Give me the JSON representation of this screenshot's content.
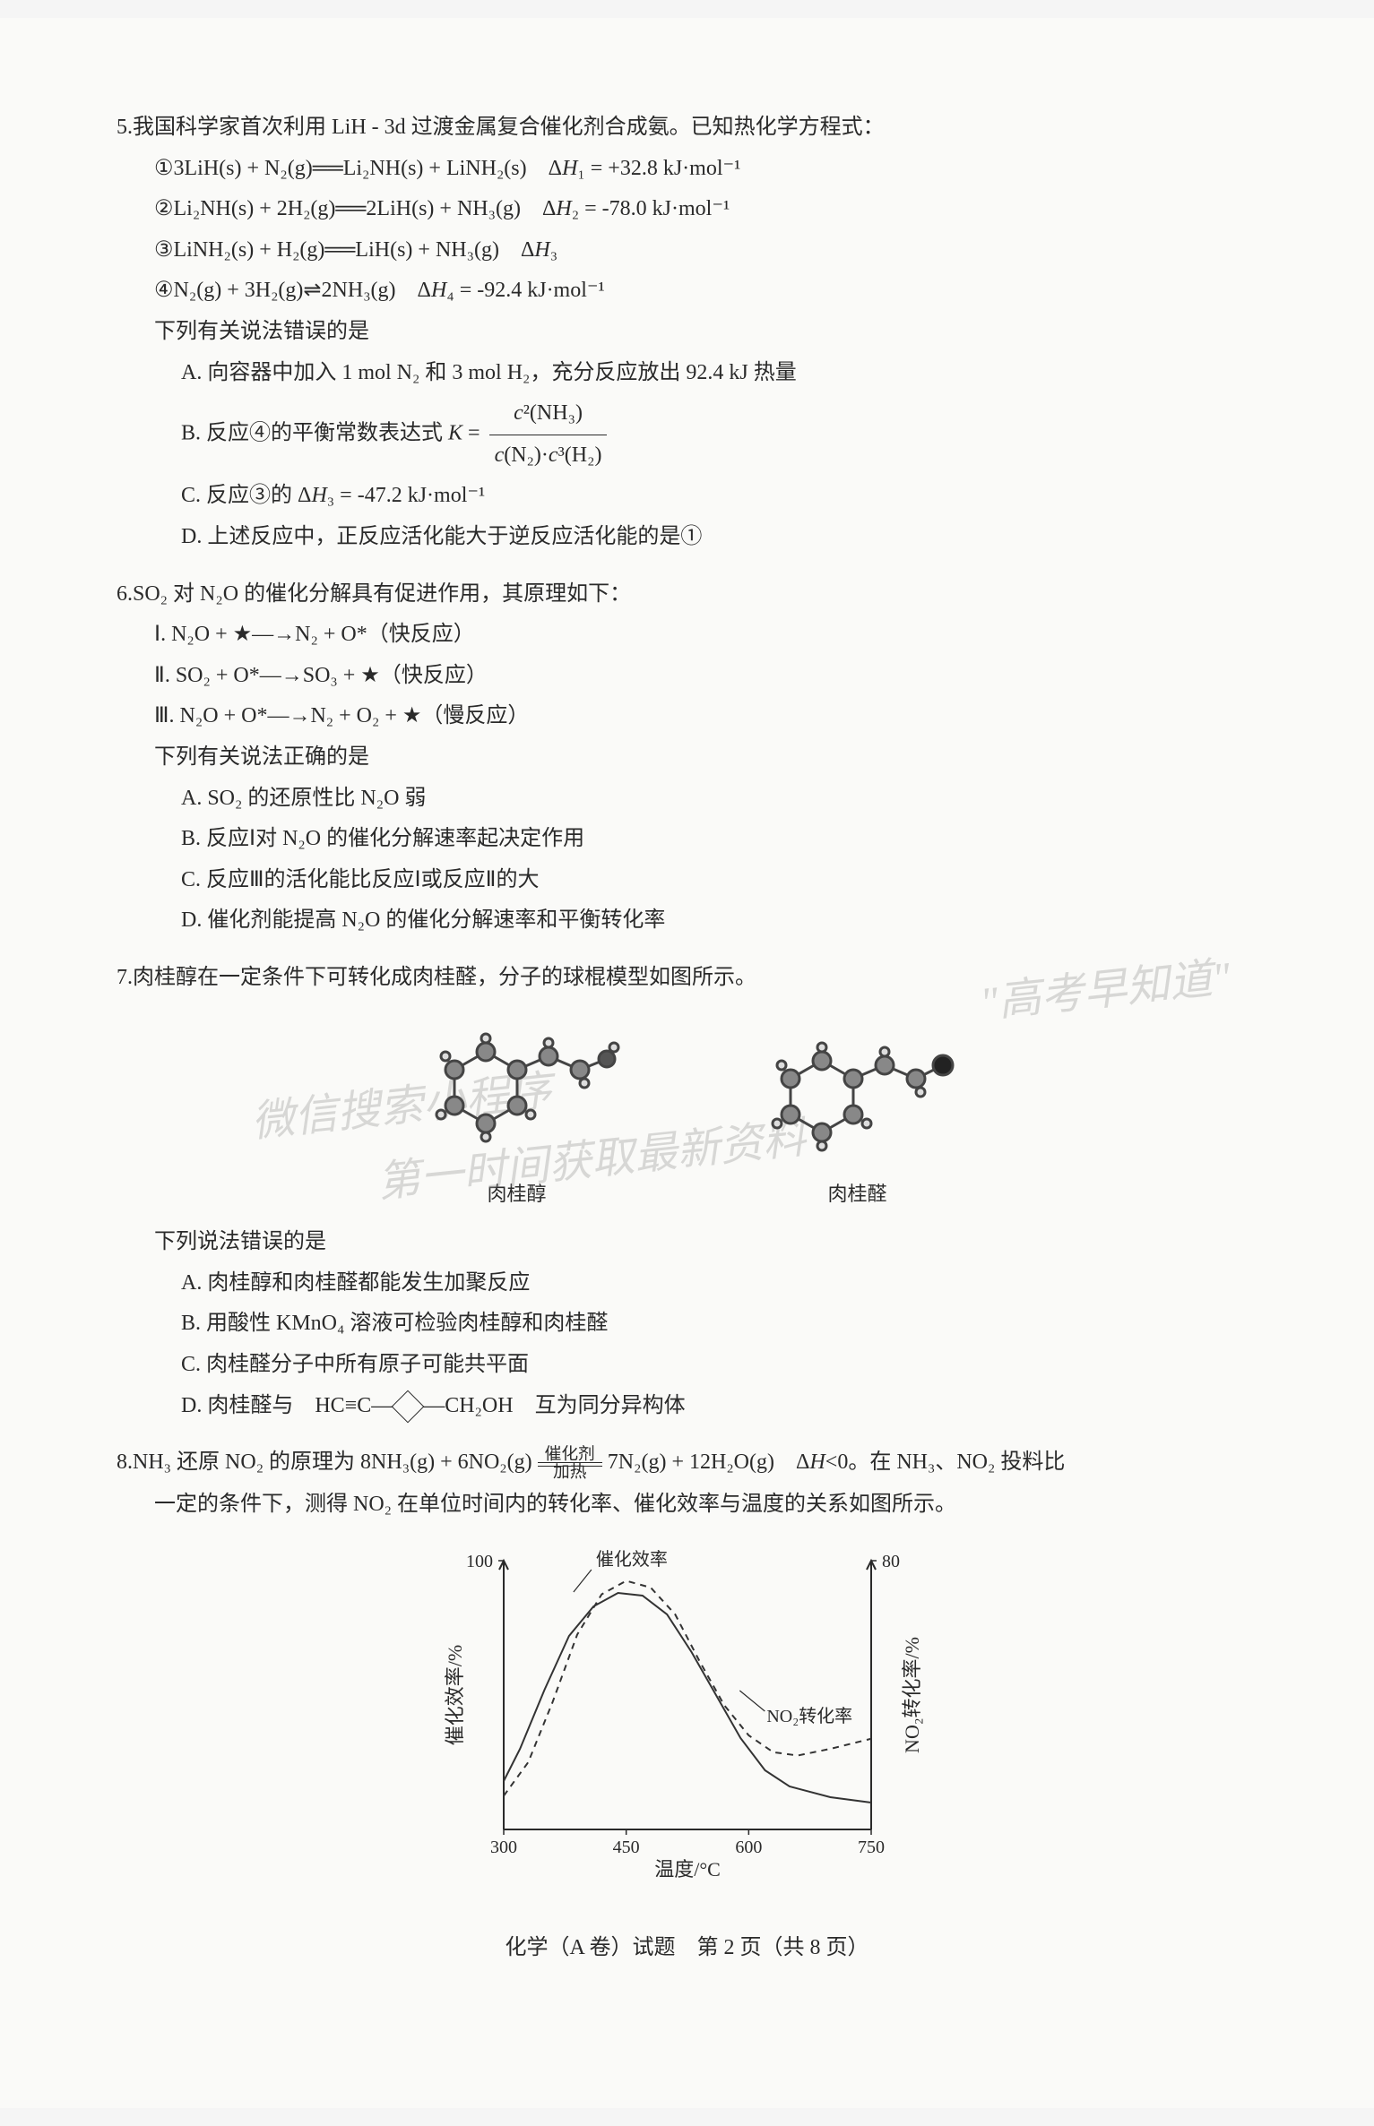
{
  "q5": {
    "num": "5.",
    "stem": "我国科学家首次利用 LiH - 3d 过渡金属复合催化剂合成氨。已知热化学方程式：",
    "eq1": "①3LiH(s) + N₂(g)══Li₂NH(s) + LiNH₂(s)　Δ<italic>H</italic>₁ = +32.8 kJ·mol⁻¹",
    "eq2": "②Li₂NH(s) + 2H₂(g)══2LiH(s) + NH₃(g)　Δ<italic>H</italic>₂ = -78.0 kJ·mol⁻¹",
    "eq3": "③LiNH₂(s) + H₂(g)══LiH(s) + NH₃(g)　Δ<italic>H</italic>₃",
    "eq4": "④N₂(g) + 3H₂(g)⇌2NH₃(g)　Δ<italic>H</italic>₄ = -92.4 kJ·mol⁻¹",
    "prompt": "下列有关说法错误的是",
    "optA": "A. 向容器中加入 1 mol N₂ 和 3 mol H₂，充分反应放出 92.4 kJ 热量",
    "optB_prefix": "B. 反应④的平衡常数表达式 <italic>K</italic> = ",
    "optB_num": "<italic>c</italic>²(NH₃)",
    "optB_den": "<italic>c</italic>(N₂)·<italic>c</italic>³(H₂)",
    "optC": "C. 反应③的 Δ<italic>H</italic>₃ = -47.2 kJ·mol⁻¹",
    "optD": "D. 上述反应中，正反应活化能大于逆反应活化能的是①"
  },
  "q6": {
    "num": "6.",
    "stem": "SO₂ 对 N₂O 的催化分解具有促进作用，其原理如下：",
    "r1": "Ⅰ. N₂O + ★—→N₂ + O*（快反应）",
    "r2": "Ⅱ. SO₂ + O*—→SO₃ + ★（快反应）",
    "r3": "Ⅲ. N₂O + O*—→N₂ + O₂ + ★（慢反应）",
    "prompt": "下列有关说法正确的是",
    "optA": "A. SO₂ 的还原性比 N₂O 弱",
    "optB": "B. 反应Ⅰ对 N₂O 的催化分解速率起决定作用",
    "optC": "C. 反应Ⅲ的活化能比反应Ⅰ或反应Ⅱ的大",
    "optD": "D. 催化剂能提高 N₂O 的催化分解速率和平衡转化率"
  },
  "q7": {
    "num": "7.",
    "stem": "肉桂醇在一定条件下可转化成肉桂醛，分子的球棍模型如图所示。",
    "mol1_label": "肉桂醇",
    "mol2_label": "肉桂醛",
    "prompt": "下列说法错误的是",
    "optA": "A. 肉桂醇和肉桂醛都能发生加聚反应",
    "optB": "B. 用酸性 KMnO₄ 溶液可检验肉桂醇和肉桂醛",
    "optC": "C. 肉桂醛分子中所有原子可能共平面",
    "optD_pre": "D. 肉桂醛与　HC≡C—",
    "optD_post": "—CH₂OH　互为同分异构体"
  },
  "q8": {
    "num": "8.",
    "stem_pre": "NH₃ 还原 NO₂ 的原理为 8NH₃(g) + 6NO₂(g)",
    "cond_top": "催化剂",
    "cond_bot": "加热",
    "stem_post": "7N₂(g) + 12H₂O(g)　Δ<italic>H</italic><0。在 NH₃、NO₂ 投料比",
    "stem_line2": "一定的条件下，测得 NO₂ 在单位时间内的转化率、催化效率与温度的关系如图所示。",
    "chart": {
      "type": "line",
      "xlabel": "温度/°C",
      "ylabel_left": "催化效率/%",
      "ylabel_right": "NO₂转化率/%",
      "xlim": [
        300,
        750
      ],
      "xticks": [
        300,
        450,
        600,
        750
      ],
      "left_ylim": [
        0,
        100
      ],
      "left_ytick": 100,
      "right_ylim": [
        0,
        80
      ],
      "right_ytick": 80,
      "series": [
        {
          "name": "催化效率",
          "style": "solid",
          "label_xy": [
            380,
            95
          ],
          "points": [
            [
              300,
              18
            ],
            [
              320,
              30
            ],
            [
              350,
              52
            ],
            [
              380,
              72
            ],
            [
              410,
              83
            ],
            [
              440,
              88
            ],
            [
              470,
              87
            ],
            [
              500,
              80
            ],
            [
              530,
              66
            ],
            [
              560,
              50
            ],
            [
              590,
              34
            ],
            [
              620,
              22
            ],
            [
              650,
              16
            ],
            [
              700,
              12
            ],
            [
              750,
              10
            ]
          ],
          "color": "#333333"
        },
        {
          "name": "NO₂转化率",
          "style": "dashed",
          "label_xy": [
            600,
            40
          ],
          "points": [
            [
              300,
              10
            ],
            [
              330,
              20
            ],
            [
              360,
              38
            ],
            [
              390,
              58
            ],
            [
              420,
              70
            ],
            [
              450,
              74
            ],
            [
              480,
              72
            ],
            [
              510,
              64
            ],
            [
              540,
              50
            ],
            [
              570,
              37
            ],
            [
              600,
              28
            ],
            [
              630,
              23
            ],
            [
              660,
              22
            ],
            [
              700,
              24
            ],
            [
              750,
              27
            ]
          ],
          "color": "#333333"
        }
      ],
      "background": "#fafaf8",
      "axis_color": "#2a2a2a",
      "line_width": 2
    }
  },
  "watermarks": {
    "w1": "\"高考早知道\"",
    "w2": "微信搜索小程序",
    "w3": "第一时间获取最新资料"
  },
  "footer": "化学（A 卷）试题　第 2 页（共 8 页）"
}
